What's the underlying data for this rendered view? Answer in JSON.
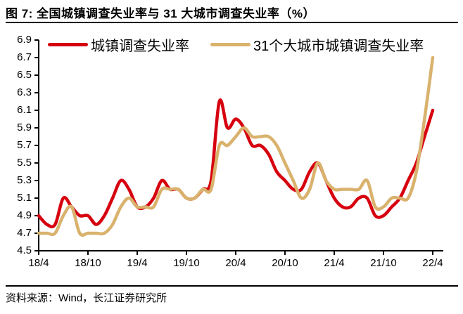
{
  "header": {
    "title": "图 7: 全国城镇调查失业率与 31 大城市调查失业率（%）"
  },
  "footer": {
    "source": "资料来源：Wind，长江证券研究所"
  },
  "colors": {
    "national": "#D7000F",
    "cities31": "#D9B26D",
    "axis": "#000000"
  },
  "chart_data": {
    "type": "line",
    "title": "全国城镇调查失业率与 31 大城市调查失业率（%）",
    "xlabel": "",
    "ylabel": "",
    "ylim": [
      4.5,
      6.9
    ],
    "y_ticks": [
      4.5,
      4.7,
      4.9,
      5.1,
      5.3,
      5.5,
      5.7,
      5.9,
      6.1,
      6.3,
      6.5,
      6.7,
      6.9
    ],
    "x_tick_labels": [
      "18/4",
      "18/10",
      "19/4",
      "19/10",
      "20/4",
      "20/10",
      "21/4",
      "21/10",
      "22/4"
    ],
    "grid": false,
    "legend_position": "top",
    "smoothed": true,
    "x": [
      "18/4",
      "18/5",
      "18/6",
      "18/7",
      "18/8",
      "18/9",
      "18/10",
      "18/11",
      "18/12",
      "19/1",
      "19/2",
      "19/3",
      "19/4",
      "19/5",
      "19/6",
      "19/7",
      "19/8",
      "19/9",
      "19/10",
      "19/11",
      "19/12",
      "20/1",
      "20/2",
      "20/3",
      "20/4",
      "20/5",
      "20/6",
      "20/7",
      "20/8",
      "20/9",
      "20/10",
      "20/11",
      "20/12",
      "21/1",
      "21/2",
      "21/3",
      "21/4",
      "21/5",
      "21/6",
      "21/7",
      "21/8",
      "21/9",
      "21/10",
      "21/11",
      "21/12",
      "22/1",
      "22/2",
      "22/3",
      "22/4"
    ],
    "series": [
      {
        "name": "城镇调查失业率",
        "color": "#D7000F",
        "values": [
          4.9,
          4.8,
          4.8,
          5.1,
          5.0,
          4.9,
          4.9,
          4.8,
          4.9,
          5.1,
          5.3,
          5.2,
          5.0,
          5.0,
          5.1,
          5.3,
          5.2,
          5.2,
          5.1,
          5.1,
          5.2,
          5.3,
          6.2,
          5.9,
          6.0,
          5.9,
          5.7,
          5.7,
          5.6,
          5.4,
          5.3,
          5.2,
          5.2,
          5.4,
          5.5,
          5.3,
          5.1,
          5.0,
          5.0,
          5.1,
          5.1,
          4.9,
          4.9,
          5.0,
          5.1,
          5.3,
          5.5,
          5.8,
          6.1
        ]
      },
      {
        "name": "31个大城市城镇调查失业率",
        "color": "#D9B26D",
        "values": [
          4.7,
          4.7,
          4.7,
          4.9,
          5.0,
          4.7,
          4.7,
          4.7,
          4.7,
          4.8,
          5.0,
          5.1,
          5.0,
          5.0,
          5.0,
          5.2,
          5.2,
          5.2,
          5.1,
          5.1,
          5.2,
          5.2,
          5.7,
          5.7,
          5.8,
          5.9,
          5.8,
          5.8,
          5.8,
          5.7,
          5.5,
          5.3,
          5.1,
          5.2,
          5.5,
          5.3,
          5.2,
          5.2,
          5.2,
          5.2,
          5.3,
          5.0,
          5.0,
          5.1,
          5.1,
          5.1,
          5.4,
          6.0,
          6.7
        ]
      }
    ]
  }
}
